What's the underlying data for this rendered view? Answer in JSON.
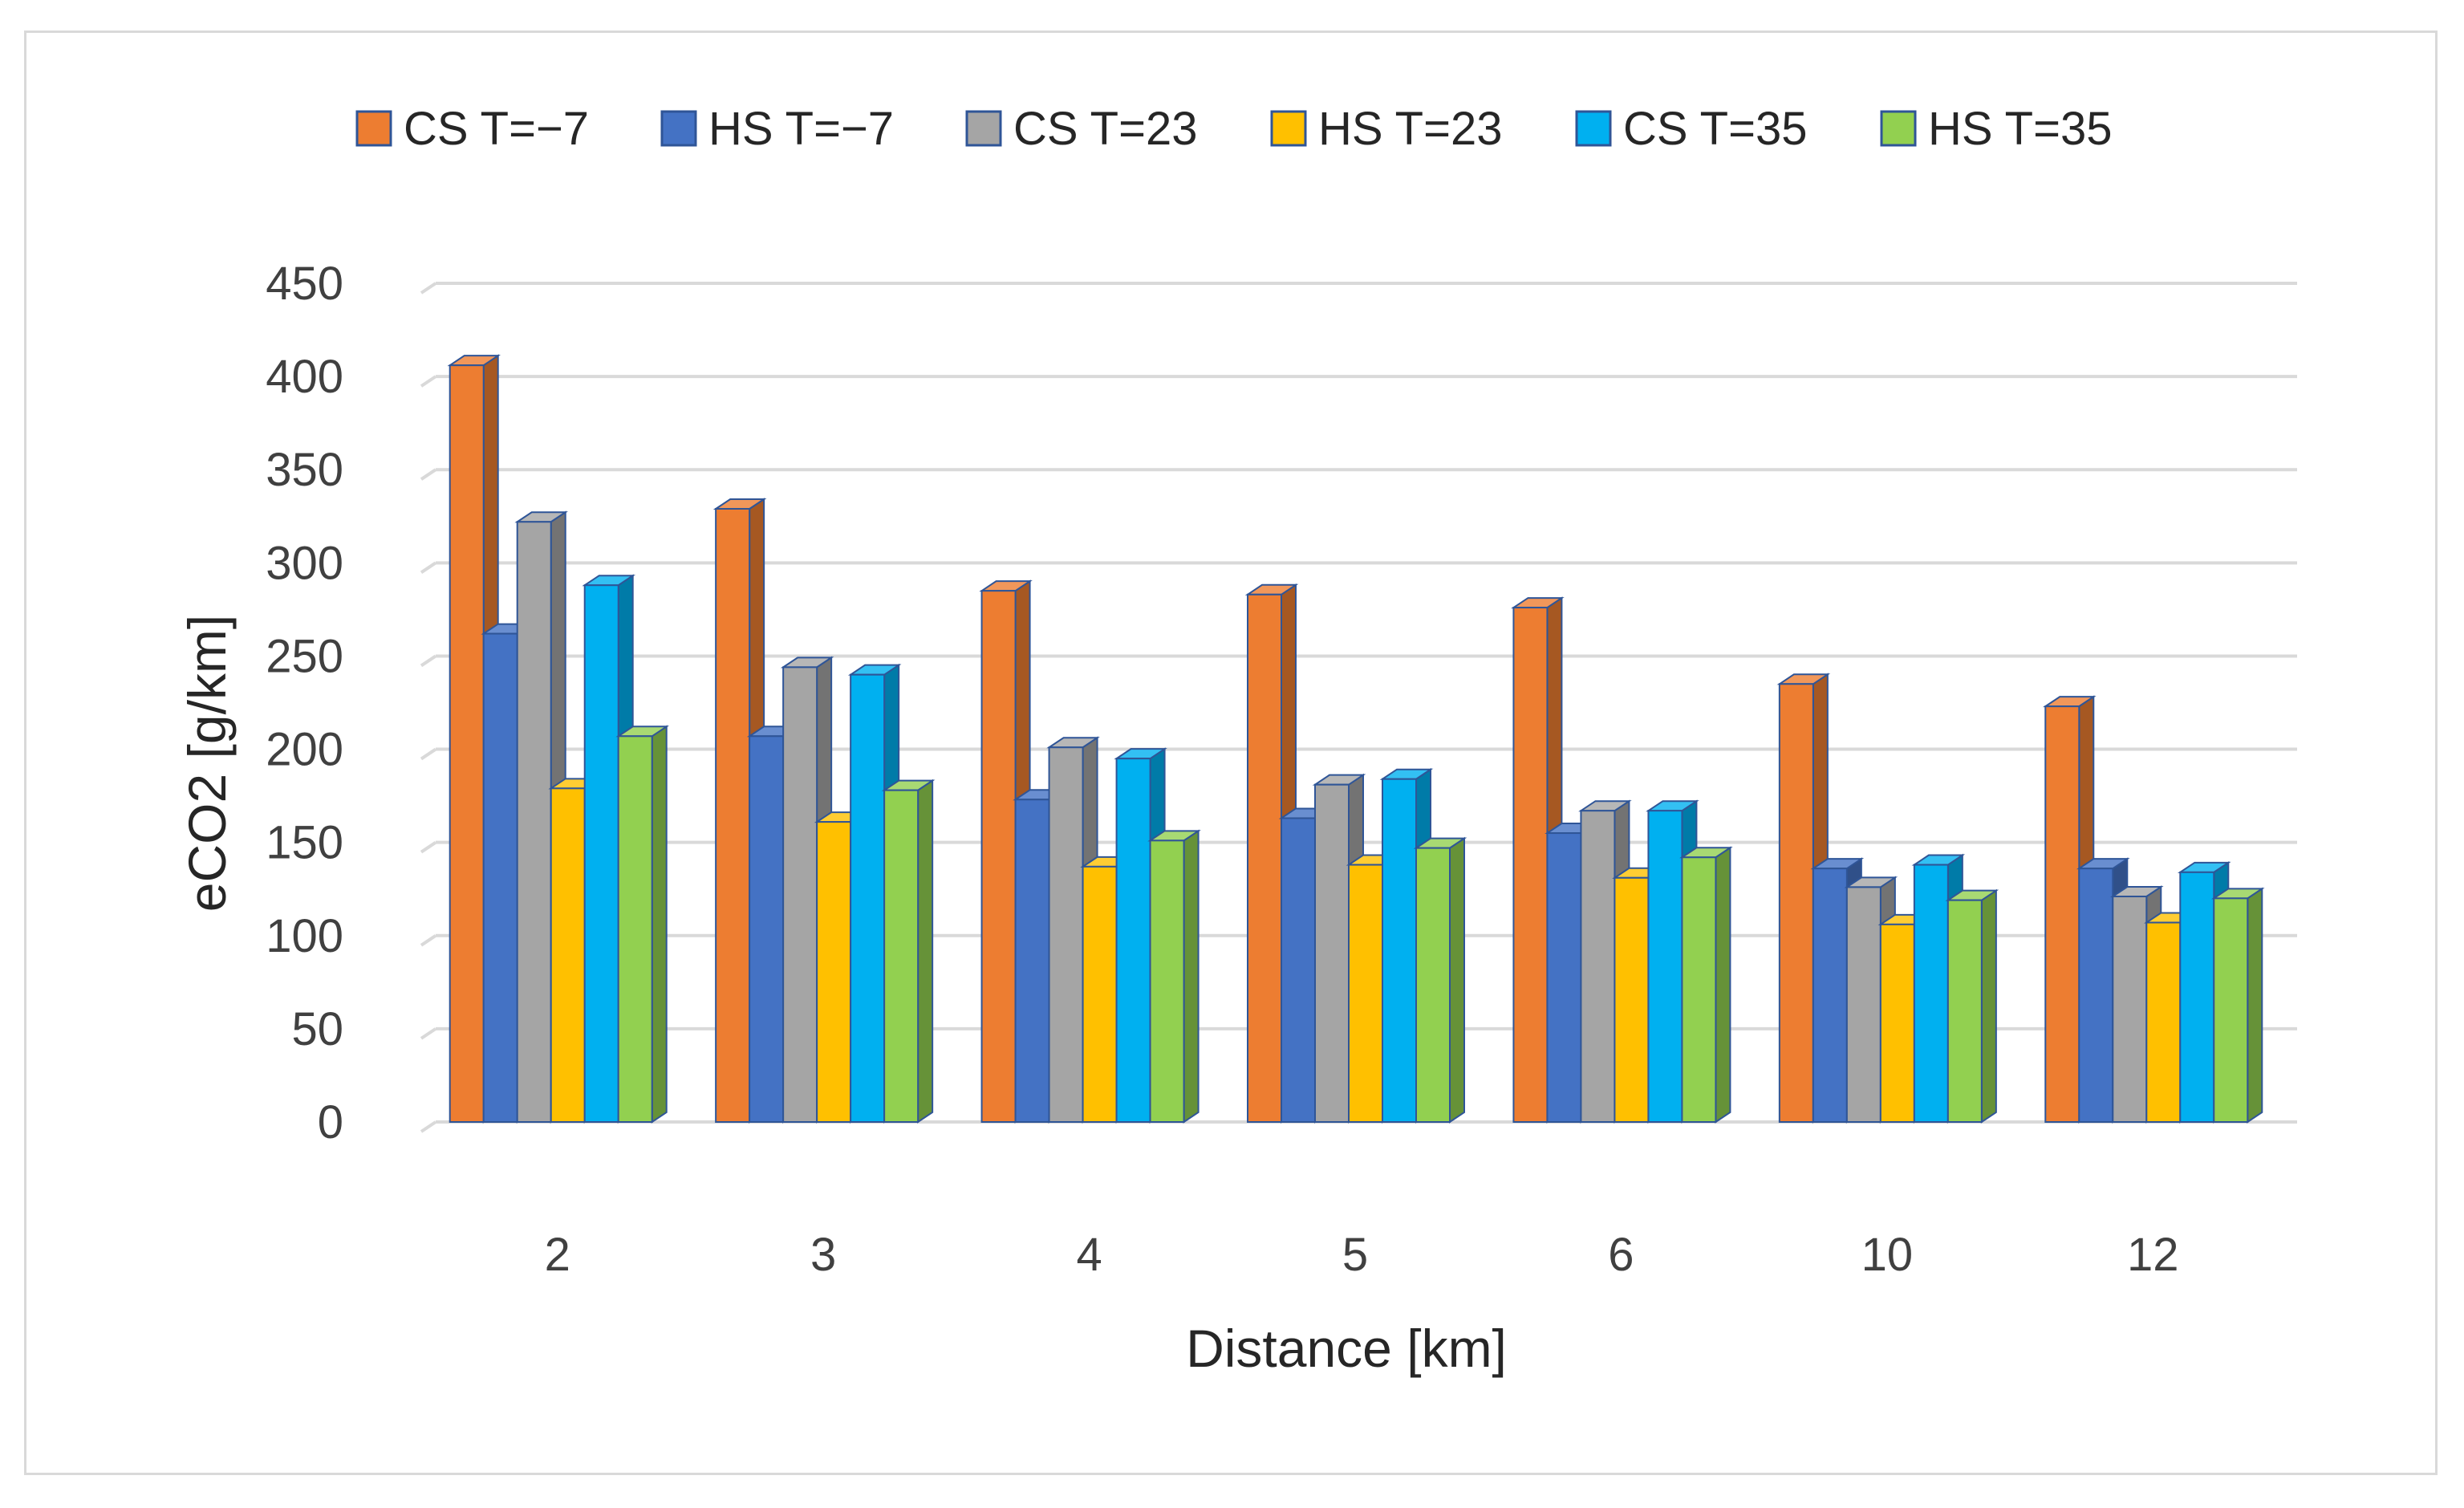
{
  "chart_data": {
    "type": "bar",
    "style": "3d-clustered-column",
    "title": "",
    "xlabel": "Distance [km]",
    "ylabel": "eCO2 [g/km]",
    "categories": [
      "2",
      "3",
      "4",
      "5",
      "6",
      "10",
      "12"
    ],
    "ylim": [
      0,
      450
    ],
    "yticks": [
      "0",
      "50",
      "100",
      "150",
      "200",
      "250",
      "300",
      "350",
      "400",
      "450"
    ],
    "grid": true,
    "legend_position": "top",
    "series": [
      {
        "name": "CS T=−7",
        "color": "#ED7D31",
        "values": [
          406,
          329,
          285,
          283,
          276,
          235,
          223
        ]
      },
      {
        "name": "HS T=−7",
        "color": "#4472C4",
        "values": [
          262,
          207,
          173,
          163,
          155,
          136,
          136
        ]
      },
      {
        "name": "CS T=23",
        "color": "#A5A5A5",
        "values": [
          322,
          244,
          201,
          181,
          167,
          126,
          121
        ]
      },
      {
        "name": "HS T=23",
        "color": "#FFC000",
        "values": [
          179,
          161,
          137,
          138,
          131,
          106,
          107
        ]
      },
      {
        "name": "CS T=35",
        "color": "#00B0F0",
        "values": [
          288,
          240,
          195,
          184,
          167,
          138,
          134
        ]
      },
      {
        "name": "HS T=35",
        "color": "#92D050",
        "values": [
          207,
          178,
          151,
          147,
          142,
          119,
          120
        ]
      }
    ]
  }
}
